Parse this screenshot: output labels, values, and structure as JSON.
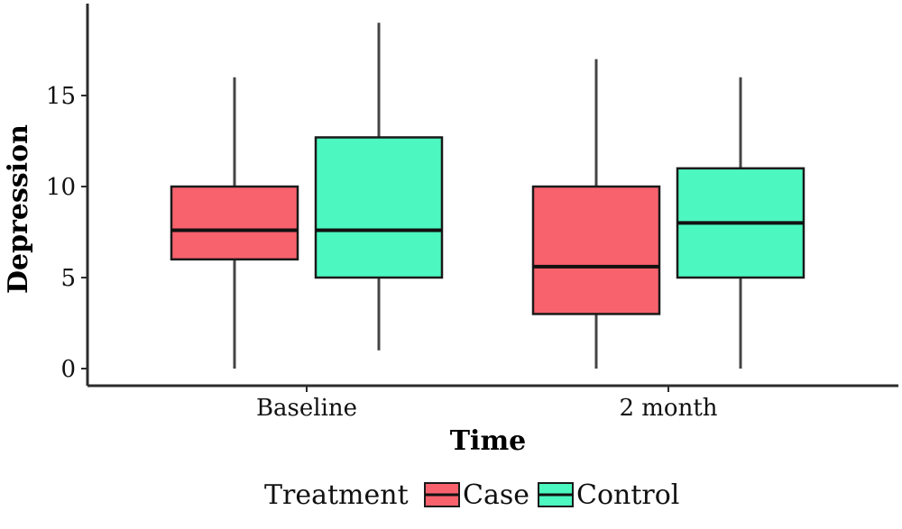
{
  "chart_data": {
    "type": "box",
    "xlabel": "Time",
    "ylabel": "Depression",
    "categories": [
      "Baseline",
      "2 month"
    ],
    "ylim": [
      -1,
      20
    ],
    "yticks": [
      0,
      5,
      10,
      15
    ],
    "grid": false,
    "legend": {
      "title": "Treatment",
      "position": "bottom"
    },
    "series": [
      {
        "name": "Case",
        "color": "#f8626d",
        "boxes": [
          {
            "category": "Baseline",
            "min": 0,
            "q1": 6,
            "median": 7.6,
            "q3": 10,
            "max": 16
          },
          {
            "category": "2 month",
            "min": 0,
            "q1": 3,
            "median": 5.6,
            "q3": 10,
            "max": 17
          }
        ]
      },
      {
        "name": "Control",
        "color": "#4cf8c0",
        "boxes": [
          {
            "category": "Baseline",
            "min": 1,
            "q1": 5,
            "median": 7.6,
            "q3": 12.7,
            "max": 19
          },
          {
            "category": "2 month",
            "min": 0,
            "q1": 5,
            "median": 8,
            "q3": 11,
            "max": 16
          }
        ]
      }
    ]
  }
}
